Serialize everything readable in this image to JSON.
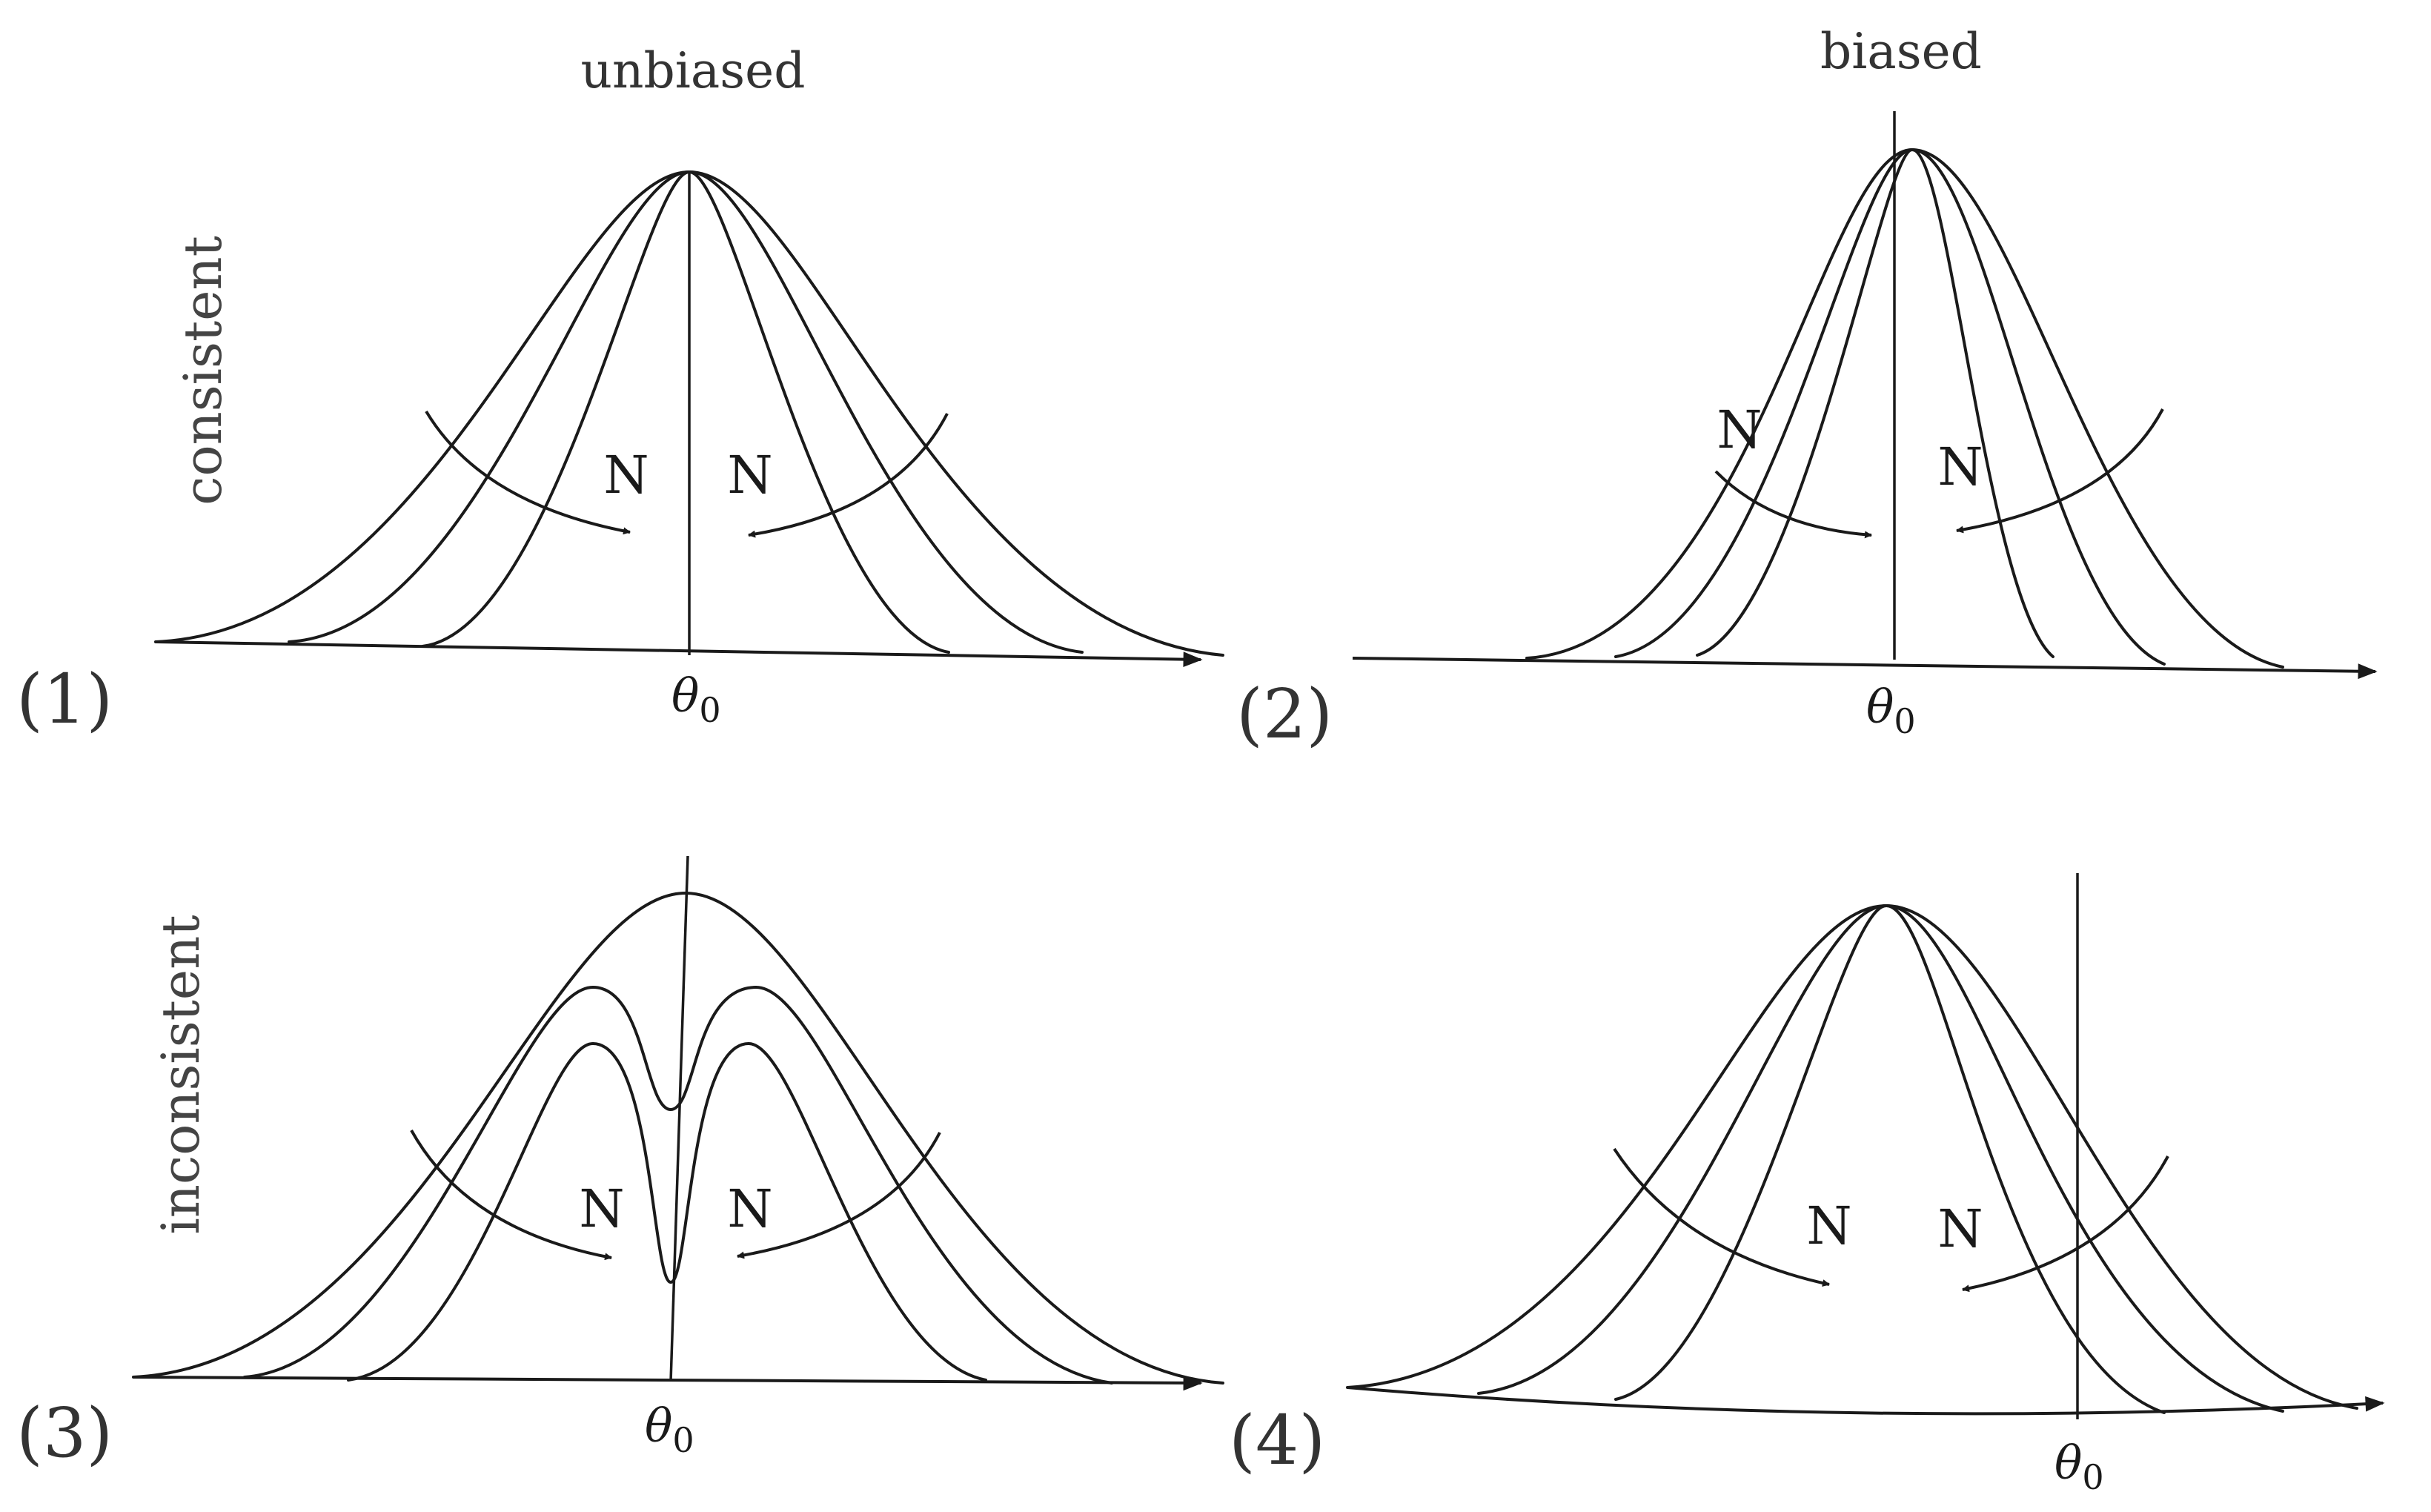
{
  "column_headings": {
    "left": "unbiased",
    "right": "biased"
  },
  "row_headings": {
    "top": "consistent",
    "bottom": "inconsistent"
  },
  "panels": [
    {
      "number": "(1)",
      "theta": "θ",
      "theta_sub": "0",
      "n_left": "N",
      "n_right": "N"
    },
    {
      "number": "(2)",
      "theta": "θ",
      "theta_sub": "0",
      "n_left": "N",
      "n_right": "N"
    },
    {
      "number": "(3)",
      "theta": "θ",
      "theta_sub": "0",
      "n_left": "N",
      "n_right": "N"
    },
    {
      "number": "(4)",
      "theta": "θ",
      "theta_sub": "0",
      "n_left": "N",
      "n_right": "N"
    }
  ]
}
